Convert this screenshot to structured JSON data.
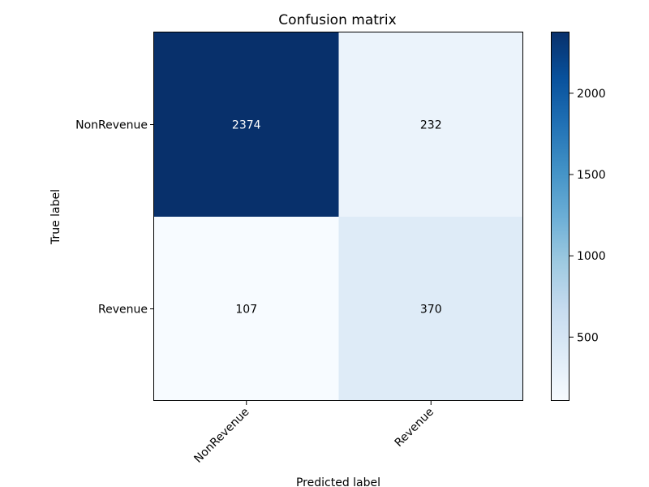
{
  "chart_data": {
    "type": "heatmap",
    "title": "Confusion matrix",
    "xlabel": "Predicted label",
    "ylabel": "True label",
    "x_categories": [
      "NonRevenue",
      "Revenue"
    ],
    "y_categories": [
      "NonRevenue",
      "Revenue"
    ],
    "values": [
      [
        2374,
        232
      ],
      [
        107,
        370
      ]
    ],
    "colormap": "Blues",
    "color_range": [
      107,
      2374
    ],
    "colorbar_ticks": [
      500,
      1000,
      1500,
      2000
    ],
    "colors": {
      "cell_2374": "#08306b",
      "cell_232": "#ebf3fb",
      "cell_107": "#f7fbff",
      "cell_370": "#deebf7",
      "text_dark_cell": "#ffffff",
      "text_light_cell": "#000000"
    }
  }
}
